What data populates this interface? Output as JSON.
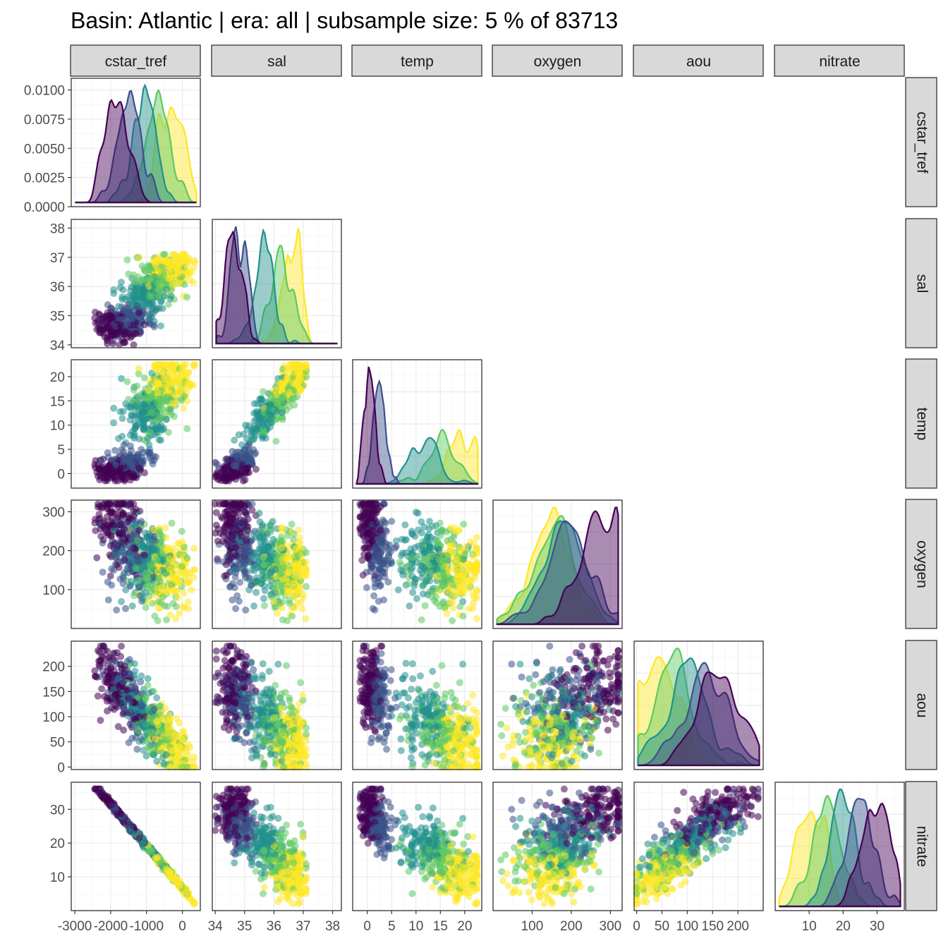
{
  "title": "Basin: Atlantic | era: all | subsample size: 5 % of 83713",
  "palette": [
    "#440154",
    "#3b528b",
    "#21908c",
    "#5ec962",
    "#fde725"
  ],
  "chart_data": {
    "type": "scatter",
    "layout": "pairs-matrix-lower-triangle",
    "diagonal": "density",
    "variables": [
      "cstar_tref",
      "sal",
      "temp",
      "oxygen",
      "aou",
      "nitrate"
    ],
    "axes": {
      "cstar_tref": {
        "range": [
          -3100,
          500
        ],
        "ticks": [
          -3000,
          -2000,
          -1000,
          0
        ],
        "tick_labels": [
          "-3000",
          "-2000",
          "-1000",
          "0"
        ]
      },
      "sal": {
        "range": [
          33.9,
          38.3
        ],
        "ticks": [
          34,
          35,
          36,
          37,
          38
        ],
        "tick_labels": [
          "34",
          "35",
          "36",
          "37",
          "38"
        ]
      },
      "temp": {
        "range": [
          -3,
          23.5
        ],
        "ticks": [
          0,
          5,
          10,
          15,
          20
        ],
        "tick_labels": [
          "0",
          "5",
          "10",
          "15",
          "20"
        ]
      },
      "oxygen": {
        "range": [
          0,
          330
        ],
        "ticks": [
          100,
          200,
          300
        ],
        "tick_labels": [
          "100",
          "200",
          "300"
        ]
      },
      "aou": {
        "range": [
          -5,
          250
        ],
        "ticks": [
          0,
          50,
          100,
          150,
          200
        ],
        "tick_labels": [
          "0",
          "50",
          "100",
          "150",
          "200"
        ]
      },
      "nitrate": {
        "range": [
          0,
          38
        ],
        "ticks": [
          10,
          20,
          30
        ],
        "tick_labels": [
          "10",
          "20",
          "30"
        ]
      }
    },
    "density_axis": {
      "range": [
        0,
        0.011
      ],
      "ticks": [
        0,
        0.0025,
        0.005,
        0.0075,
        0.01
      ],
      "tick_labels": [
        "0.0000",
        "0.0025",
        "0.0050",
        "0.0075",
        "0.0100"
      ]
    },
    "grid": true,
    "legend": "none"
  }
}
